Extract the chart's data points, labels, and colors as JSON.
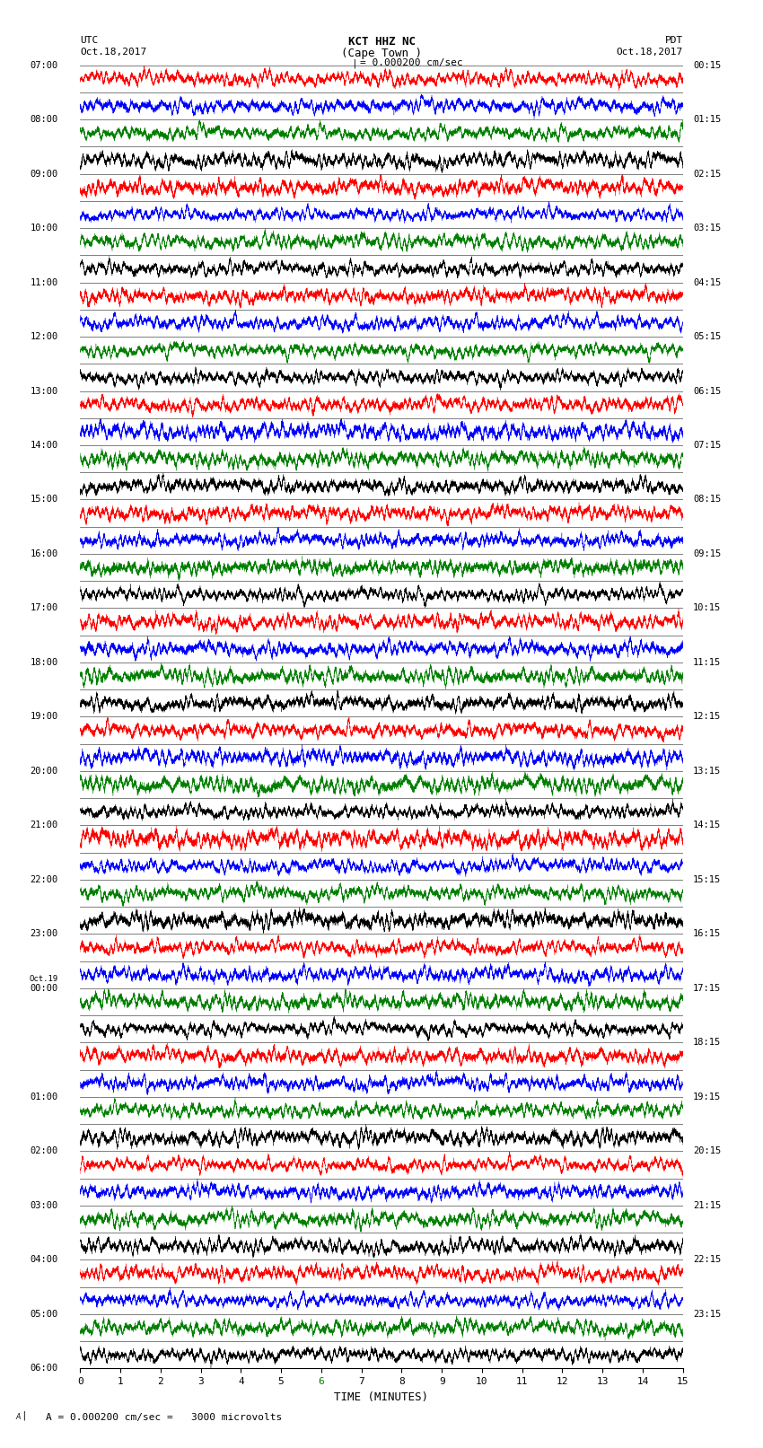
{
  "title_line1": "KCT HHZ NC",
  "title_line2": "(Cape Town )",
  "scale_label": "= 0.000200 cm/sec",
  "left_label_line1": "UTC",
  "left_label_line2": "Oct.18,2017",
  "right_label_line1": "PDT",
  "right_label_line2": "Oct.18,2017",
  "bottom_label": "A = 0.000200 cm/sec =   3000 microvolts",
  "xlabel": "TIME (MINUTES)",
  "utc_times_left": [
    "07:00",
    "08:00",
    "09:00",
    "10:00",
    "11:00",
    "12:00",
    "13:00",
    "14:00",
    "15:00",
    "16:00",
    "17:00",
    "18:00",
    "19:00",
    "20:00",
    "21:00",
    "22:00",
    "23:00",
    "Oct.19",
    "00:00",
    "01:00",
    "02:00",
    "03:00",
    "04:00",
    "05:00",
    "06:00"
  ],
  "pdt_times_right": [
    "00:15",
    "01:15",
    "02:15",
    "03:15",
    "04:15",
    "05:15",
    "06:15",
    "07:15",
    "08:15",
    "09:15",
    "10:15",
    "11:15",
    "12:15",
    "13:15",
    "14:15",
    "15:15",
    "16:15",
    "17:15",
    "18:15",
    "19:15",
    "20:15",
    "21:15",
    "22:15",
    "23:15"
  ],
  "n_rows": 48,
  "n_minutes": 15,
  "colors": [
    "red",
    "blue",
    "green",
    "black"
  ],
  "background_color": "white",
  "fig_width": 8.5,
  "fig_height": 16.13,
  "dpi": 100
}
